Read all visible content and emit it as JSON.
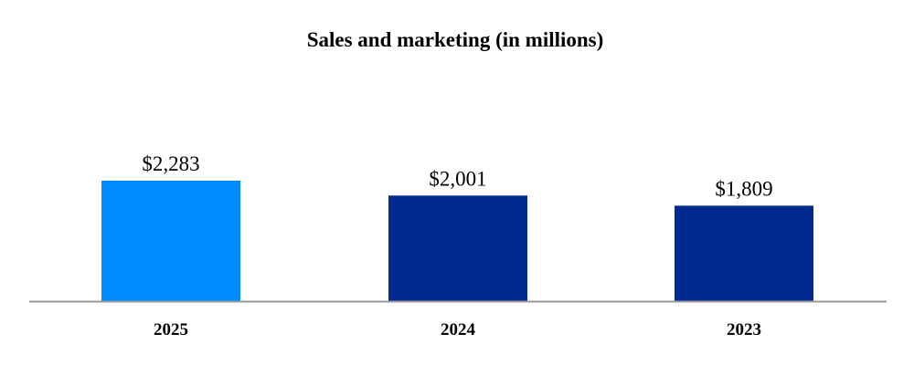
{
  "chart_data": {
    "type": "bar",
    "title": "Sales and marketing  (in millions)",
    "xlabel": "",
    "ylabel": "",
    "categories": [
      "2025",
      "2024",
      "2023"
    ],
    "values": [
      2283,
      2001,
      1809
    ],
    "data_labels": [
      "$2,283",
      "$2,001",
      "$1,809"
    ],
    "colors": [
      "#008CFF",
      "#002A8F",
      "#002A8F"
    ],
    "axis_color": "#999999",
    "ylim": [
      0,
      2283
    ],
    "grid": false,
    "legend": "none"
  }
}
